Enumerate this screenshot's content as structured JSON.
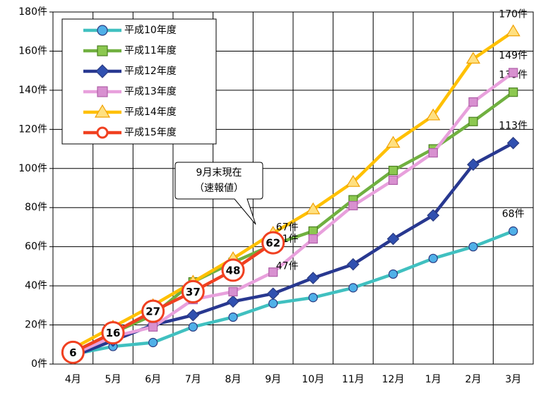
{
  "chart_data": {
    "type": "line",
    "categories": [
      "4月",
      "5月",
      "6月",
      "7月",
      "8月",
      "9月",
      "10月",
      "11月",
      "12月",
      "1月",
      "2月",
      "3月"
    ],
    "ylim": [
      0,
      180
    ],
    "yticks": [
      {
        "value": 0,
        "label": "0件"
      },
      {
        "value": 20,
        "label": "20件"
      },
      {
        "value": 40,
        "label": "40件"
      },
      {
        "value": 60,
        "label": "60件"
      },
      {
        "value": 80,
        "label": "80件"
      },
      {
        "value": 100,
        "label": "100件"
      },
      {
        "value": 120,
        "label": "120件"
      },
      {
        "value": 140,
        "label": "140件"
      },
      {
        "value": 160,
        "label": "160件"
      },
      {
        "value": 180,
        "label": "180件"
      }
    ],
    "grid": true,
    "legend": "top-left",
    "annotation": [
      "9月末現在",
      "（速報値）"
    ],
    "series": [
      {
        "name": "平成10年度",
        "color": "#40c0c0",
        "marker": "circle",
        "marker_color": "#50b0e8",
        "values": [
          5,
          9,
          11,
          19,
          24,
          31,
          34,
          39,
          46,
          54,
          60,
          68
        ],
        "value_labels": [
          null,
          null,
          null,
          null,
          null,
          null,
          null,
          null,
          null,
          null,
          null,
          "68件"
        ]
      },
      {
        "name": "平成11年度",
        "color": "#70b040",
        "marker": "square",
        "marker_color": "#8cc850",
        "values": [
          6,
          16,
          25,
          42,
          52,
          61,
          68,
          84,
          99,
          110,
          124,
          139
        ],
        "value_labels": [
          null,
          null,
          null,
          null,
          null,
          "61件",
          null,
          null,
          null,
          null,
          null,
          "139件"
        ]
      },
      {
        "name": "平成12年度",
        "color": "#283890",
        "marker": "diamond",
        "marker_color": "#3050b0",
        "values": [
          4,
          12,
          20,
          25,
          32,
          36,
          44,
          51,
          64,
          76,
          102,
          113
        ],
        "value_labels": [
          null,
          null,
          null,
          null,
          null,
          null,
          null,
          null,
          null,
          null,
          null,
          "113件"
        ]
      },
      {
        "name": "平成13年度",
        "color": "#e8a0dc",
        "marker": "square",
        "marker_color": "#d890d0",
        "values": [
          5,
          14,
          19,
          33,
          37,
          47,
          64,
          81,
          94,
          108,
          134,
          149
        ],
        "value_labels": [
          null,
          null,
          null,
          null,
          null,
          "47件",
          null,
          null,
          null,
          null,
          null,
          "149件"
        ]
      },
      {
        "name": "平成14年度",
        "color": "#ffc000",
        "marker": "triangle",
        "marker_color": "#ffe080",
        "values": [
          8,
          19,
          30,
          42,
          54,
          67,
          79,
          93,
          113,
          127,
          156,
          170
        ],
        "value_labels": [
          null,
          null,
          null,
          null,
          null,
          "67件",
          null,
          null,
          null,
          null,
          null,
          "170件"
        ]
      },
      {
        "name": "平成15年度",
        "color": "#f04020",
        "marker": "badge",
        "marker_color": "#ffffff",
        "values": [
          6,
          16,
          27,
          37,
          48,
          62,
          null,
          null,
          null,
          null,
          null,
          null
        ]
      }
    ]
  }
}
